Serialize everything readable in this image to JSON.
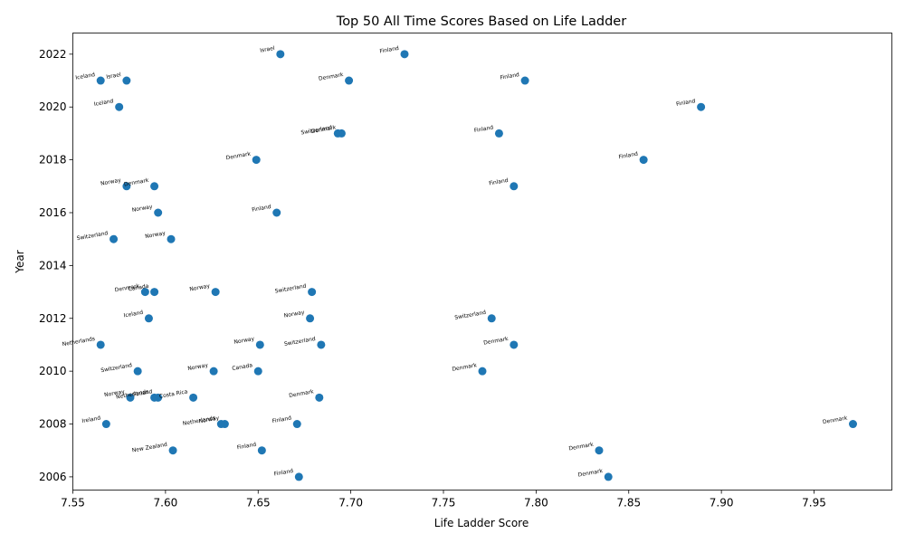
{
  "chart_data": {
    "type": "scatter",
    "title": "Top 50 All Time Scores Based on Life Ladder",
    "xlabel": "Life Ladder Score",
    "ylabel": "Year",
    "xlim": [
      7.55,
      7.992
    ],
    "ylim": [
      2005.5,
      2022.8
    ],
    "xticks": [
      "7.55",
      "7.60",
      "7.65",
      "7.70",
      "7.75",
      "7.80",
      "7.85",
      "7.90",
      "7.95"
    ],
    "yticks": [
      "2006",
      "2008",
      "2010",
      "2012",
      "2014",
      "2016",
      "2018",
      "2020",
      "2022"
    ],
    "grid": false,
    "legend": "none",
    "marker_color": "#1f77b4",
    "points": [
      {
        "x": 7.971,
        "y": 2008,
        "label": "Denmark"
      },
      {
        "x": 7.889,
        "y": 2020,
        "label": "Finland"
      },
      {
        "x": 7.858,
        "y": 2018,
        "label": "Finland"
      },
      {
        "x": 7.839,
        "y": 2006,
        "label": "Denmark"
      },
      {
        "x": 7.834,
        "y": 2007,
        "label": "Denmark"
      },
      {
        "x": 7.794,
        "y": 2021,
        "label": "Finland"
      },
      {
        "x": 7.788,
        "y": 2011,
        "label": "Denmark"
      },
      {
        "x": 7.788,
        "y": 2017,
        "label": "Finland"
      },
      {
        "x": 7.78,
        "y": 2019,
        "label": "Finland"
      },
      {
        "x": 7.776,
        "y": 2012,
        "label": "Switzerland"
      },
      {
        "x": 7.771,
        "y": 2010,
        "label": "Denmark"
      },
      {
        "x": 7.729,
        "y": 2022,
        "label": "Finland"
      },
      {
        "x": 7.699,
        "y": 2021,
        "label": "Denmark"
      },
      {
        "x": 7.695,
        "y": 2019,
        "label": "Denmark"
      },
      {
        "x": 7.693,
        "y": 2019,
        "label": "Switzerland"
      },
      {
        "x": 7.684,
        "y": 2011,
        "label": "Switzerland"
      },
      {
        "x": 7.683,
        "y": 2009,
        "label": "Denmark"
      },
      {
        "x": 7.679,
        "y": 2013,
        "label": "Switzerland"
      },
      {
        "x": 7.678,
        "y": 2012,
        "label": "Norway"
      },
      {
        "x": 7.672,
        "y": 2006,
        "label": "Finland"
      },
      {
        "x": 7.671,
        "y": 2008,
        "label": "Finland"
      },
      {
        "x": 7.662,
        "y": 2022,
        "label": "Israel"
      },
      {
        "x": 7.66,
        "y": 2016,
        "label": "Finland"
      },
      {
        "x": 7.652,
        "y": 2007,
        "label": "Finland"
      },
      {
        "x": 7.651,
        "y": 2011,
        "label": "Norway"
      },
      {
        "x": 7.65,
        "y": 2010,
        "label": "Canada"
      },
      {
        "x": 7.649,
        "y": 2018,
        "label": "Denmark"
      },
      {
        "x": 7.632,
        "y": 2008,
        "label": "Norway"
      },
      {
        "x": 7.63,
        "y": 2008,
        "label": "Netherlands"
      },
      {
        "x": 7.627,
        "y": 2013,
        "label": "Norway"
      },
      {
        "x": 7.626,
        "y": 2010,
        "label": "Norway"
      },
      {
        "x": 7.615,
        "y": 2009,
        "label": "Costa Rica"
      },
      {
        "x": 7.604,
        "y": 2007,
        "label": "New Zealand"
      },
      {
        "x": 7.603,
        "y": 2015,
        "label": "Norway"
      },
      {
        "x": 7.596,
        "y": 2016,
        "label": "Norway"
      },
      {
        "x": 7.596,
        "y": 2009,
        "label": "Finland"
      },
      {
        "x": 7.594,
        "y": 2013,
        "label": "Canada"
      },
      {
        "x": 7.594,
        "y": 2017,
        "label": "Denmark"
      },
      {
        "x": 7.594,
        "y": 2009,
        "label": "Netherlands"
      },
      {
        "x": 7.591,
        "y": 2012,
        "label": "Iceland"
      },
      {
        "x": 7.589,
        "y": 2013,
        "label": "Denmark"
      },
      {
        "x": 7.585,
        "y": 2010,
        "label": "Switzerland"
      },
      {
        "x": 7.581,
        "y": 2009,
        "label": "Norway"
      },
      {
        "x": 7.579,
        "y": 2021,
        "label": "Israel"
      },
      {
        "x": 7.579,
        "y": 2017,
        "label": "Norway"
      },
      {
        "x": 7.575,
        "y": 2020,
        "label": "Iceland"
      },
      {
        "x": 7.572,
        "y": 2015,
        "label": "Switzerland"
      },
      {
        "x": 7.568,
        "y": 2008,
        "label": "Ireland"
      },
      {
        "x": 7.565,
        "y": 2011,
        "label": "Netherlands"
      },
      {
        "x": 7.565,
        "y": 2021,
        "label": "Iceland"
      }
    ]
  }
}
